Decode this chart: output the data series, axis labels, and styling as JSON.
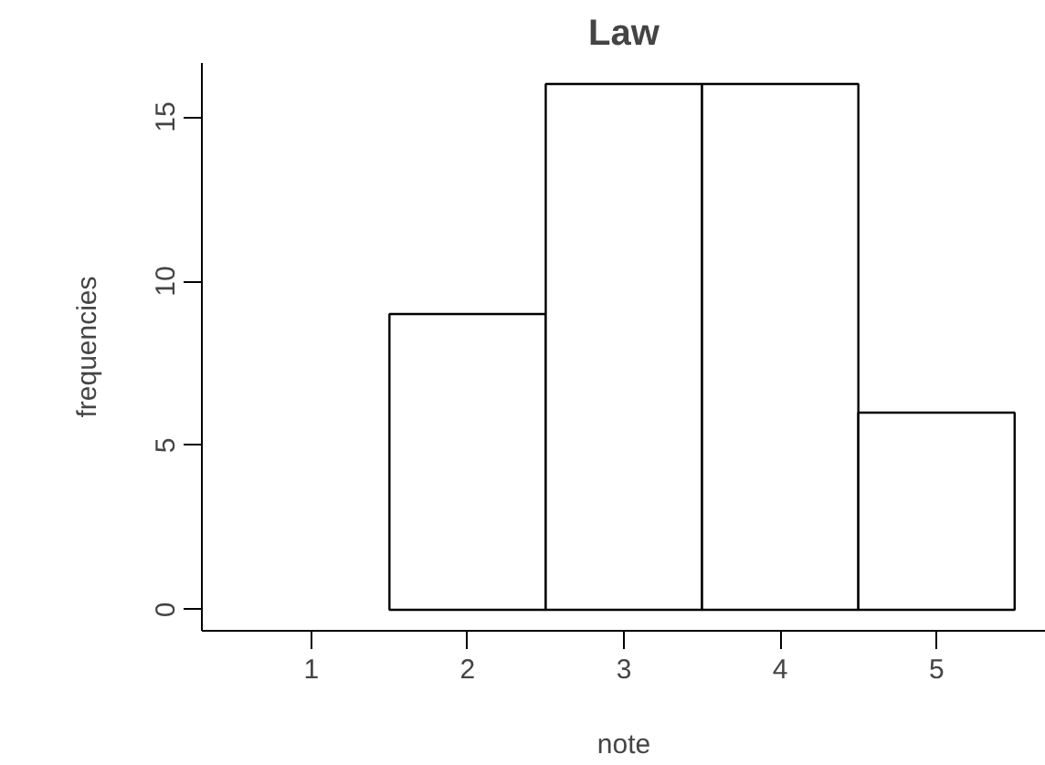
{
  "chart_data": {
    "type": "histogram",
    "title": "Law",
    "xlabel": "note",
    "ylabel": "frequencies",
    "bins": [
      1.5,
      2.5,
      3.5,
      4.5,
      5.5
    ],
    "values": [
      9,
      16,
      16,
      6
    ],
    "color": "#ffffff",
    "xlim": [
      0.3,
      5.7
    ],
    "ylim": [
      -0.64,
      16.64
    ],
    "xticks": [
      1,
      2,
      3,
      4,
      5
    ],
    "yticks": [
      0,
      5,
      10,
      15
    ],
    "grid": false
  }
}
